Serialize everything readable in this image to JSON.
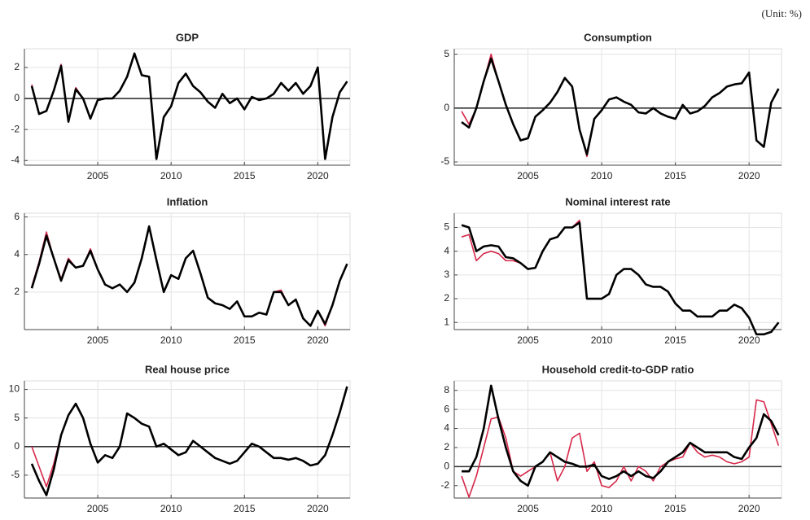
{
  "note": "(Unit: %)",
  "chart_data": [
    {
      "type": "line",
      "title": "GDP",
      "xlim": [
        2000,
        2022.2
      ],
      "xticks": [
        2005,
        2010,
        2015,
        2020
      ],
      "ylim": [
        -4.3,
        3.2
      ],
      "yticks": [
        -4,
        -2,
        0,
        2
      ],
      "grid": true,
      "x": [
        2000.5,
        2001,
        2001.5,
        2002,
        2002.5,
        2003,
        2003.5,
        2004,
        2004.5,
        2005,
        2005.5,
        2006,
        2006.5,
        2007,
        2007.5,
        2008,
        2008.5,
        2009,
        2009.5,
        2010,
        2010.5,
        2011,
        2011.5,
        2012,
        2012.5,
        2013,
        2013.5,
        2014,
        2014.5,
        2015,
        2015.5,
        2016,
        2016.5,
        2017,
        2017.5,
        2018,
        2018.5,
        2019,
        2019.5,
        2020,
        2020.5,
        2021,
        2021.5,
        2022
      ],
      "series": [
        {
          "color": "#d6284a",
          "values": [
            0.9,
            -1.0,
            -0.8,
            0.5,
            2.2,
            -1.5,
            0.7,
            0.0,
            -1.3,
            -0.1,
            0.0,
            0.0,
            0.5,
            1.4,
            2.9,
            1.5,
            1.4,
            -3.9,
            -1.2,
            -0.5,
            1.0,
            1.6,
            0.8,
            0.4,
            -0.2,
            -0.6,
            0.3,
            -0.3,
            0.0,
            -0.7,
            0.1,
            -0.1,
            0.0,
            0.3,
            1.0,
            0.5,
            1.0,
            0.3,
            0.8,
            2.0,
            -3.9,
            -1.2,
            0.4,
            1.1
          ]
        },
        {
          "color": "#000000",
          "values": [
            0.8,
            -1.0,
            -0.8,
            0.5,
            2.1,
            -1.5,
            0.6,
            0.0,
            -1.3,
            -0.1,
            0.0,
            0.0,
            0.5,
            1.4,
            2.9,
            1.5,
            1.4,
            -3.9,
            -1.2,
            -0.5,
            1.0,
            1.6,
            0.8,
            0.4,
            -0.2,
            -0.6,
            0.3,
            -0.3,
            0.0,
            -0.7,
            0.1,
            -0.1,
            0.0,
            0.3,
            1.0,
            0.5,
            1.0,
            0.3,
            0.8,
            2.0,
            -3.9,
            -1.2,
            0.4,
            1.1
          ]
        }
      ]
    },
    {
      "type": "line",
      "title": "Consumption",
      "xlim": [
        2000,
        2022.2
      ],
      "xticks": [
        2005,
        2010,
        2015,
        2020
      ],
      "ylim": [
        -5.3,
        5.5
      ],
      "yticks": [
        -5,
        0,
        5
      ],
      "grid": true,
      "x": [
        2000.5,
        2001,
        2001.5,
        2002,
        2002.5,
        2003,
        2003.5,
        2004,
        2004.5,
        2005,
        2005.5,
        2006,
        2006.5,
        2007,
        2007.5,
        2008,
        2008.5,
        2009,
        2009.5,
        2010,
        2010.5,
        2011,
        2011.5,
        2012,
        2012.5,
        2013,
        2013.5,
        2014,
        2014.5,
        2015,
        2015.5,
        2016,
        2016.5,
        2017,
        2017.5,
        2018,
        2018.5,
        2019,
        2019.5,
        2020,
        2020.5,
        2021,
        2021.5,
        2022
      ],
      "series": [
        {
          "color": "#d6284a",
          "values": [
            -0.3,
            -1.5,
            0.0,
            2.5,
            5.0,
            2.5,
            0.3,
            -1.5,
            -3.0,
            -2.8,
            -0.8,
            -0.2,
            0.5,
            1.5,
            2.8,
            2.0,
            -2.0,
            -4.5,
            -1.0,
            -0.2,
            0.8,
            1.0,
            0.6,
            0.3,
            -0.4,
            -0.5,
            0.0,
            -0.5,
            -0.8,
            -1.0,
            0.3,
            -0.5,
            -0.3,
            0.2,
            1.0,
            1.4,
            2.0,
            2.2,
            2.3,
            3.3,
            -3.0,
            -3.6,
            0.5,
            1.8
          ]
        },
        {
          "color": "#000000",
          "values": [
            -1.3,
            -1.8,
            0.0,
            2.5,
            4.6,
            2.5,
            0.3,
            -1.5,
            -3.0,
            -2.8,
            -0.8,
            -0.2,
            0.5,
            1.5,
            2.8,
            2.0,
            -2.0,
            -4.3,
            -1.0,
            -0.2,
            0.8,
            1.0,
            0.6,
            0.3,
            -0.4,
            -0.5,
            0.0,
            -0.5,
            -0.8,
            -1.0,
            0.3,
            -0.5,
            -0.3,
            0.2,
            1.0,
            1.4,
            2.0,
            2.2,
            2.3,
            3.3,
            -3.0,
            -3.6,
            0.5,
            1.8
          ]
        }
      ]
    },
    {
      "type": "line",
      "title": "Inflation",
      "xlim": [
        2000,
        2022.2
      ],
      "xticks": [
        2005,
        2010,
        2015,
        2020
      ],
      "ylim": [
        0,
        6.2
      ],
      "yticks": [
        2,
        4,
        6
      ],
      "grid": true,
      "x": [
        2000.5,
        2001,
        2001.5,
        2002,
        2002.5,
        2003,
        2003.5,
        2004,
        2004.5,
        2005,
        2005.5,
        2006,
        2006.5,
        2007,
        2007.5,
        2008,
        2008.5,
        2009,
        2009.5,
        2010,
        2010.5,
        2011,
        2011.5,
        2012,
        2012.5,
        2013,
        2013.5,
        2014,
        2014.5,
        2015,
        2015.5,
        2016,
        2016.5,
        2017,
        2017.5,
        2018,
        2018.5,
        2019,
        2019.5,
        2020,
        2020.5,
        2021,
        2021.5,
        2022
      ],
      "series": [
        {
          "color": "#d6284a",
          "values": [
            2.3,
            3.6,
            5.2,
            3.8,
            2.7,
            3.8,
            3.3,
            3.4,
            4.3,
            3.2,
            2.4,
            2.2,
            2.4,
            2.0,
            2.5,
            3.8,
            5.5,
            3.7,
            2.0,
            2.9,
            2.7,
            3.8,
            4.2,
            3.0,
            1.7,
            1.4,
            1.3,
            1.1,
            1.5,
            0.7,
            0.7,
            0.9,
            0.8,
            2.0,
            2.1,
            1.3,
            1.6,
            0.6,
            0.2,
            1.0,
            0.2,
            1.3,
            2.6,
            3.5
          ]
        },
        {
          "color": "#000000",
          "values": [
            2.2,
            3.5,
            5.0,
            3.8,
            2.6,
            3.7,
            3.3,
            3.4,
            4.2,
            3.2,
            2.4,
            2.2,
            2.4,
            2.0,
            2.5,
            3.8,
            5.5,
            3.7,
            2.0,
            2.9,
            2.7,
            3.8,
            4.2,
            3.0,
            1.7,
            1.4,
            1.3,
            1.1,
            1.5,
            0.7,
            0.7,
            0.9,
            0.8,
            2.0,
            2.0,
            1.3,
            1.6,
            0.6,
            0.2,
            1.0,
            0.3,
            1.3,
            2.6,
            3.5
          ]
        }
      ]
    },
    {
      "type": "line",
      "title": "Nominal interest rate",
      "xlim": [
        2000,
        2022.2
      ],
      "xticks": [
        2005,
        2010,
        2015,
        2020
      ],
      "ylim": [
        0.7,
        5.6
      ],
      "yticks": [
        1,
        2,
        3,
        4,
        5
      ],
      "grid": true,
      "x": [
        2000.5,
        2001,
        2001.5,
        2002,
        2002.5,
        2003,
        2003.5,
        2004,
        2004.5,
        2005,
        2005.5,
        2006,
        2006.5,
        2007,
        2007.5,
        2008,
        2008.5,
        2009,
        2009.5,
        2010,
        2010.5,
        2011,
        2011.5,
        2012,
        2012.5,
        2013,
        2013.5,
        2014,
        2014.5,
        2015,
        2015.5,
        2016,
        2016.5,
        2017,
        2017.5,
        2018,
        2018.5,
        2019,
        2019.5,
        2020,
        2020.5,
        2021,
        2021.5,
        2022
      ],
      "series": [
        {
          "color": "#d6284a",
          "values": [
            4.6,
            4.7,
            3.6,
            3.9,
            4.0,
            3.9,
            3.6,
            3.6,
            3.5,
            3.25,
            3.3,
            4.0,
            4.5,
            4.6,
            5.0,
            5.0,
            5.3,
            2.0,
            2.0,
            2.0,
            2.2,
            3.0,
            3.25,
            3.25,
            3.0,
            2.6,
            2.5,
            2.5,
            2.3,
            1.8,
            1.5,
            1.5,
            1.25,
            1.25,
            1.25,
            1.5,
            1.5,
            1.75,
            1.6,
            1.2,
            0.5,
            0.5,
            0.6,
            1.0
          ]
        },
        {
          "color": "#000000",
          "values": [
            5.1,
            5.0,
            4.0,
            4.2,
            4.25,
            4.2,
            3.75,
            3.7,
            3.5,
            3.25,
            3.3,
            4.0,
            4.5,
            4.6,
            5.0,
            5.0,
            5.2,
            2.0,
            2.0,
            2.0,
            2.2,
            3.0,
            3.25,
            3.25,
            3.0,
            2.6,
            2.5,
            2.5,
            2.3,
            1.8,
            1.5,
            1.5,
            1.25,
            1.25,
            1.25,
            1.5,
            1.5,
            1.75,
            1.6,
            1.2,
            0.5,
            0.5,
            0.6,
            1.0
          ]
        }
      ]
    },
    {
      "type": "line",
      "title": "Real house price",
      "xlim": [
        2000,
        2022.2
      ],
      "xticks": [
        2005,
        2010,
        2015,
        2020
      ],
      "ylim": [
        -9,
        11.5
      ],
      "yticks": [
        -5,
        0,
        5,
        10
      ],
      "grid": true,
      "x": [
        2000.5,
        2001,
        2001.5,
        2002,
        2002.5,
        2003,
        2003.5,
        2004,
        2004.5,
        2005,
        2005.5,
        2006,
        2006.5,
        2007,
        2007.5,
        2008,
        2008.5,
        2009,
        2009.5,
        2010,
        2010.5,
        2011,
        2011.5,
        2012,
        2012.5,
        2013,
        2013.5,
        2014,
        2014.5,
        2015,
        2015.5,
        2016,
        2016.5,
        2017,
        2017.5,
        2018,
        2018.5,
        2019,
        2019.5,
        2020,
        2020.5,
        2021,
        2021.5,
        2022
      ],
      "series": [
        {
          "color": "#d6284a",
          "values": [
            0,
            -3.5,
            -7,
            -3,
            2,
            5.5,
            7.5,
            5,
            0.5,
            -2.8,
            -1.5,
            -2,
            0,
            5.8,
            5,
            4,
            3.5,
            0,
            0.5,
            -0.5,
            -1.5,
            -1,
            1,
            0,
            -1,
            -2,
            -2.5,
            -3,
            -2.5,
            -1,
            0.5,
            0,
            -1,
            -2,
            -2,
            -2.3,
            -2,
            -2.5,
            -3.3,
            -3,
            -1.5,
            2,
            6,
            10.5
          ]
        },
        {
          "color": "#000000",
          "values": [
            -3,
            -6,
            -8.5,
            -4,
            2,
            5.5,
            7.5,
            5,
            0.5,
            -2.8,
            -1.5,
            -2,
            0,
            5.8,
            5,
            4,
            3.5,
            0,
            0.5,
            -0.5,
            -1.5,
            -1,
            1,
            0,
            -1,
            -2,
            -2.5,
            -3,
            -2.5,
            -1,
            0.5,
            0,
            -1,
            -2,
            -2,
            -2.3,
            -2,
            -2.5,
            -3.3,
            -3,
            -1.5,
            2,
            6,
            10.5
          ]
        }
      ]
    },
    {
      "type": "line",
      "title": "Household credit-to-GDP ratio",
      "xlim": [
        2000,
        2022.2
      ],
      "xticks": [
        2005,
        2010,
        2015,
        2020
      ],
      "ylim": [
        -3.3,
        9
      ],
      "yticks": [
        -2,
        0,
        2,
        4,
        6,
        8
      ],
      "grid": true,
      "x": [
        2000.5,
        2001,
        2001.5,
        2002,
        2002.5,
        2003,
        2003.5,
        2004,
        2004.5,
        2005,
        2005.5,
        2006,
        2006.5,
        2007,
        2007.5,
        2008,
        2008.5,
        2009,
        2009.5,
        2010,
        2010.5,
        2011,
        2011.5,
        2012,
        2012.5,
        2013,
        2013.5,
        2014,
        2014.5,
        2015,
        2015.5,
        2016,
        2016.5,
        2017,
        2017.5,
        2018,
        2018.5,
        2019,
        2019.5,
        2020,
        2020.5,
        2021,
        2021.5,
        2022
      ],
      "series": [
        {
          "color": "#d6284a",
          "values": [
            -1,
            -3.2,
            -1,
            2,
            5,
            5.2,
            3,
            -0.5,
            -1,
            -0.5,
            0,
            0.5,
            1.5,
            -1.5,
            0,
            3,
            3.5,
            -0.5,
            0.5,
            -2,
            -2.2,
            -1.5,
            0,
            -1.5,
            0,
            -0.5,
            -1.5,
            0,
            0.5,
            0.8,
            1,
            2.5,
            1.5,
            1,
            1.2,
            1,
            0.5,
            0.3,
            0.5,
            1,
            7,
            6.8,
            4.5,
            2.2
          ]
        },
        {
          "color": "#000000",
          "values": [
            -0.5,
            -0.5,
            1,
            4,
            8.5,
            5,
            2,
            -0.5,
            -1.5,
            -2,
            0,
            0.5,
            1.5,
            1,
            0.5,
            0.3,
            0,
            0,
            0.2,
            -1,
            -1.3,
            -1,
            -0.5,
            -1,
            -0.5,
            -1,
            -1.2,
            -0.5,
            0.5,
            1,
            1.5,
            2.5,
            2,
            1.5,
            1.5,
            1.5,
            1.5,
            1,
            0.8,
            2,
            3,
            5.5,
            4.8,
            3.3
          ]
        }
      ]
    }
  ]
}
